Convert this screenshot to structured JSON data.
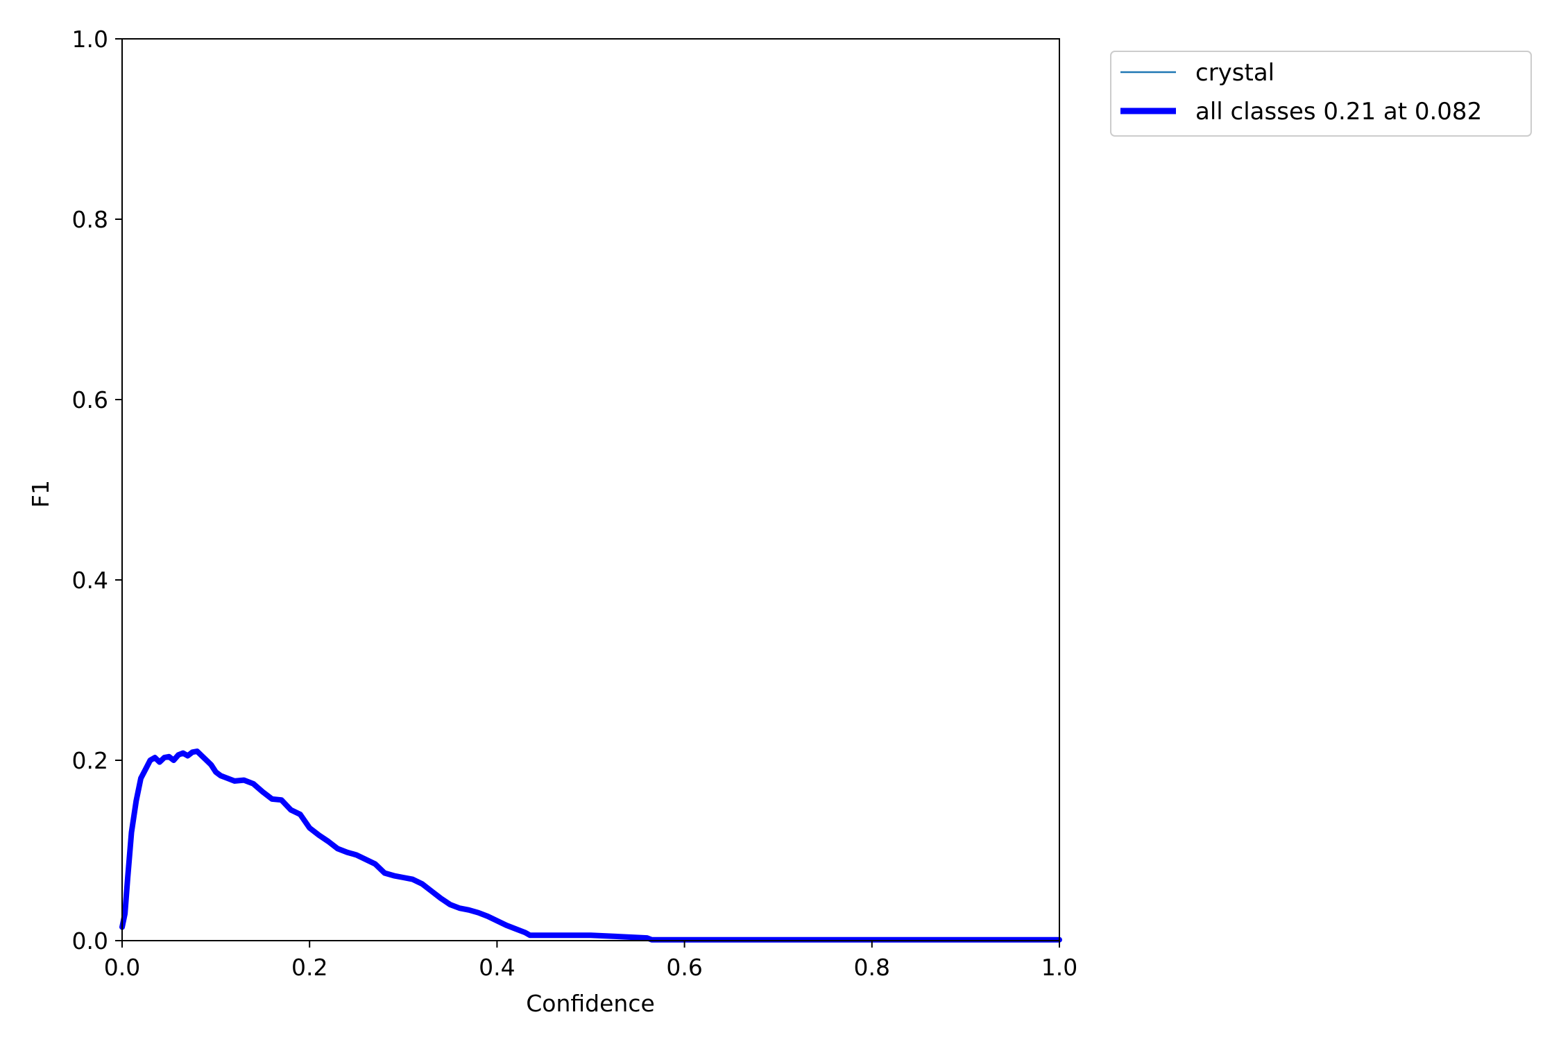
{
  "chart_data": {
    "type": "line",
    "title": "",
    "xlabel": "Confidence",
    "ylabel": "F1",
    "xlim": [
      0.0,
      1.0
    ],
    "ylim": [
      0.0,
      1.0
    ],
    "xticks": [
      "0.0",
      "0.2",
      "0.4",
      "0.6",
      "0.8",
      "1.0"
    ],
    "yticks": [
      "0.0",
      "0.2",
      "0.4",
      "0.6",
      "0.8",
      "1.0"
    ],
    "grid": false,
    "legend_position": "outside top-right",
    "legend": [
      {
        "label": "crystal",
        "color": "#1f77b4",
        "style": "thin"
      },
      {
        "label": "all classes 0.21 at 0.082",
        "color": "#0000ff",
        "style": "thick"
      }
    ],
    "series": [
      {
        "name": "crystal",
        "color": "#1f77b4",
        "x": [
          0.0,
          0.003,
          0.006,
          0.01,
          0.015,
          0.02,
          0.025,
          0.03,
          0.035,
          0.04,
          0.045,
          0.05,
          0.055,
          0.06,
          0.065,
          0.07,
          0.075,
          0.08,
          0.085,
          0.09,
          0.095,
          0.1,
          0.105,
          0.11,
          0.12,
          0.13,
          0.14,
          0.15,
          0.16,
          0.17,
          0.18,
          0.19,
          0.2,
          0.21,
          0.22,
          0.23,
          0.24,
          0.25,
          0.26,
          0.27,
          0.28,
          0.29,
          0.3,
          0.31,
          0.32,
          0.33,
          0.34,
          0.35,
          0.36,
          0.37,
          0.38,
          0.39,
          0.4,
          0.41,
          0.42,
          0.43,
          0.435,
          0.44,
          0.5,
          0.56,
          0.565,
          0.6,
          0.7,
          0.8,
          0.9,
          1.0
        ],
        "y": [
          0.015,
          0.03,
          0.07,
          0.12,
          0.155,
          0.18,
          0.19,
          0.2,
          0.203,
          0.198,
          0.203,
          0.204,
          0.2,
          0.206,
          0.208,
          0.205,
          0.209,
          0.21,
          0.205,
          0.2,
          0.195,
          0.187,
          0.183,
          0.181,
          0.177,
          0.178,
          0.174,
          0.165,
          0.157,
          0.156,
          0.145,
          0.14,
          0.125,
          0.117,
          0.11,
          0.102,
          0.098,
          0.095,
          0.09,
          0.085,
          0.075,
          0.072,
          0.07,
          0.068,
          0.063,
          0.055,
          0.047,
          0.04,
          0.036,
          0.034,
          0.031,
          0.027,
          0.022,
          0.017,
          0.013,
          0.009,
          0.006,
          0.006,
          0.006,
          0.003,
          0.001,
          0.001,
          0.001,
          0.001,
          0.001,
          0.001
        ]
      },
      {
        "name": "all classes 0.21 at 0.082",
        "color": "#0000ff",
        "x": [
          0.0,
          0.003,
          0.006,
          0.01,
          0.015,
          0.02,
          0.025,
          0.03,
          0.035,
          0.04,
          0.045,
          0.05,
          0.055,
          0.06,
          0.065,
          0.07,
          0.075,
          0.08,
          0.085,
          0.09,
          0.095,
          0.1,
          0.105,
          0.11,
          0.12,
          0.13,
          0.14,
          0.15,
          0.16,
          0.17,
          0.18,
          0.19,
          0.2,
          0.21,
          0.22,
          0.23,
          0.24,
          0.25,
          0.26,
          0.27,
          0.28,
          0.29,
          0.3,
          0.31,
          0.32,
          0.33,
          0.34,
          0.35,
          0.36,
          0.37,
          0.38,
          0.39,
          0.4,
          0.41,
          0.42,
          0.43,
          0.435,
          0.44,
          0.5,
          0.56,
          0.565,
          0.6,
          0.7,
          0.8,
          0.9,
          1.0
        ],
        "y": [
          0.015,
          0.03,
          0.07,
          0.12,
          0.155,
          0.18,
          0.19,
          0.2,
          0.203,
          0.198,
          0.203,
          0.204,
          0.2,
          0.206,
          0.208,
          0.205,
          0.209,
          0.21,
          0.205,
          0.2,
          0.195,
          0.187,
          0.183,
          0.181,
          0.177,
          0.178,
          0.174,
          0.165,
          0.157,
          0.156,
          0.145,
          0.14,
          0.125,
          0.117,
          0.11,
          0.102,
          0.098,
          0.095,
          0.09,
          0.085,
          0.075,
          0.072,
          0.07,
          0.068,
          0.063,
          0.055,
          0.047,
          0.04,
          0.036,
          0.034,
          0.031,
          0.027,
          0.022,
          0.017,
          0.013,
          0.009,
          0.006,
          0.006,
          0.006,
          0.003,
          0.001,
          0.001,
          0.001,
          0.001,
          0.001,
          0.001
        ]
      }
    ]
  }
}
